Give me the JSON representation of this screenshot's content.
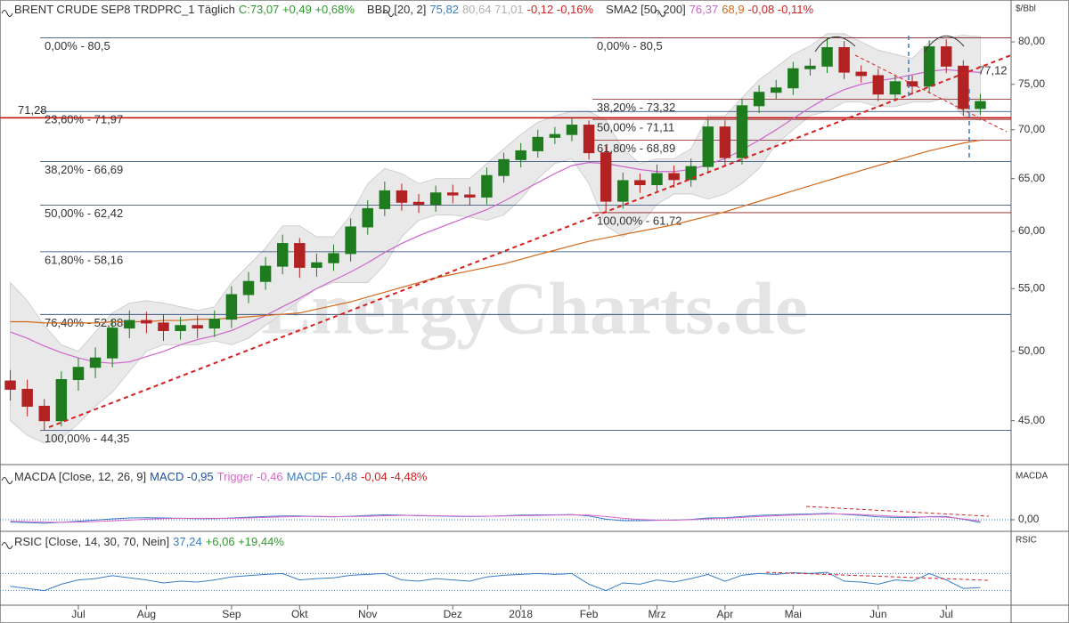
{
  "chart_data": [
    {
      "type": "candlestick",
      "header": [
        {
          "text": "BRENT CRUDE SEP8 TRDPRC_1 Täglich",
          "color": "#333333"
        },
        {
          "text": "C:73,07 +0,49 +0,68%",
          "color": "#2e9a2e"
        },
        {
          "text": "BBD [20, 2]",
          "color": "#333333"
        },
        {
          "text": "75,82",
          "color": "#3a7cc4"
        },
        {
          "text": "80,64 71,01",
          "color": "#b0b0b0"
        },
        {
          "text": "-0,12 -0,16%",
          "color": "#cc2222"
        },
        {
          "text": "SMA2 [50, 200]",
          "color": "#333333"
        },
        {
          "text": "76,37",
          "color": "#cc66cc"
        },
        {
          "text": "68,9",
          "color": "#d2691e"
        },
        {
          "text": "-0,08 -0,11%",
          "color": "#cc2222"
        }
      ],
      "unit": "$/Bbl",
      "watermark": "EnergyCharts.de",
      "log": true,
      "ylim": [
        42.1,
        83.2
      ],
      "yticks": [
        {
          "value": 45,
          "label": "45,00"
        },
        {
          "value": 50,
          "label": "50,00"
        },
        {
          "value": 55,
          "label": "55,00"
        },
        {
          "value": 60,
          "label": "60,00"
        },
        {
          "value": 65,
          "label": "65,00"
        },
        {
          "value": 70,
          "label": "70,00"
        },
        {
          "value": 75,
          "label": "75,00"
        },
        {
          "value": 80,
          "label": "80,00"
        }
      ],
      "categories": [
        null,
        null,
        null,
        null,
        "Jul",
        null,
        null,
        null,
        "Aug",
        null,
        null,
        null,
        null,
        "Sep",
        null,
        null,
        null,
        "Okt",
        null,
        null,
        null,
        "Nov",
        null,
        null,
        null,
        null,
        "Dez",
        null,
        null,
        null,
        "2018",
        null,
        null,
        null,
        "Feb",
        null,
        null,
        null,
        "Mrz",
        null,
        null,
        null,
        "Apr",
        null,
        null,
        null,
        "Mai",
        null,
        null,
        null,
        null,
        "Jun",
        null,
        null,
        null,
        "Jul",
        null,
        null
      ],
      "open": [
        47.8,
        47.2,
        46.0,
        45.0,
        47.9,
        48.8,
        49.5,
        51.8,
        52.4,
        52.2,
        51.6,
        52.0,
        51.8,
        52.5,
        54.5,
        55.6,
        56.9,
        58.9,
        56.8,
        57.2,
        58.0,
        60.4,
        62.1,
        63.8,
        62.7,
        62.5,
        63.6,
        63.4,
        63.2,
        65.3,
        66.9,
        67.8,
        69.2,
        69.5,
        70.5,
        67.6,
        62.8,
        64.8,
        64.4,
        65.5,
        64.9,
        66.2,
        70.3,
        67.1,
        72.6,
        74.1,
        74.6,
        76.8,
        77.1,
        79.3,
        76.4,
        76.0,
        73.9,
        75.3,
        74.8,
        79.4,
        77.1,
        72.3
      ],
      "high": [
        48.6,
        47.9,
        46.5,
        48.5,
        49.5,
        50.3,
        52.5,
        53.2,
        53.1,
        52.9,
        52.7,
        52.8,
        53.2,
        55.2,
        56.4,
        57.7,
        59.7,
        59.4,
        58.0,
        58.8,
        61.2,
        62.9,
        64.7,
        64.5,
        63.5,
        64.3,
        64.4,
        64.2,
        66.1,
        67.6,
        68.6,
        70.0,
        70.3,
        71.3,
        71.0,
        68.3,
        65.6,
        65.5,
        66.4,
        66.3,
        67.0,
        71.1,
        71.0,
        73.4,
        74.9,
        75.5,
        77.6,
        78.0,
        80.5,
        80.1,
        77.2,
        76.8,
        76.1,
        76.0,
        80.2,
        80.3,
        77.8,
        73.9
      ],
      "low": [
        46.4,
        45.3,
        44.35,
        44.6,
        47.1,
        48.0,
        48.8,
        51.0,
        51.4,
        50.8,
        50.9,
        51.0,
        51.1,
        51.8,
        53.8,
        54.9,
        56.2,
        55.9,
        56.0,
        56.5,
        57.3,
        59.7,
        61.4,
        61.9,
        61.7,
        61.8,
        62.6,
        62.4,
        62.5,
        64.6,
        66.1,
        67.1,
        68.5,
        68.8,
        66.9,
        61.72,
        62.1,
        63.6,
        63.7,
        64.1,
        64.2,
        65.5,
        66.3,
        66.4,
        71.8,
        73.3,
        73.8,
        76.0,
        76.3,
        75.6,
        75.2,
        73.1,
        73.1,
        74.0,
        74.0,
        76.3,
        71.5,
        71.6
      ],
      "close": [
        47.2,
        46.0,
        45.0,
        47.9,
        48.8,
        49.5,
        51.8,
        52.4,
        52.2,
        51.6,
        52.0,
        51.8,
        52.5,
        54.5,
        55.6,
        56.9,
        58.9,
        56.8,
        57.2,
        58.0,
        60.4,
        62.1,
        63.8,
        62.7,
        62.5,
        63.6,
        63.4,
        63.2,
        65.3,
        66.9,
        67.8,
        69.2,
        69.5,
        70.5,
        67.6,
        62.8,
        64.8,
        64.4,
        65.5,
        64.9,
        66.2,
        70.3,
        67.1,
        72.6,
        74.1,
        74.6,
        76.8,
        77.1,
        79.3,
        76.4,
        76.0,
        73.9,
        75.3,
        74.8,
        79.4,
        77.1,
        72.3,
        73.07
      ],
      "up_color": "#1e7b1e",
      "down_color": "#b22222",
      "bands": {
        "color": "#e9e9e9",
        "upper": [
          55.5,
          54.0,
          52.0,
          50.5,
          50.0,
          51.5,
          53.0,
          53.8,
          54.0,
          53.8,
          53.5,
          53.2,
          53.5,
          55.5,
          57.0,
          58.5,
          60.5,
          60.5,
          59.5,
          59.5,
          61.5,
          64.5,
          66.0,
          65.5,
          64.5,
          65.0,
          65.0,
          65.0,
          66.5,
          68.0,
          69.5,
          70.8,
          71.5,
          72.0,
          72.0,
          71.0,
          68.0,
          66.5,
          67.0,
          67.0,
          68.0,
          71.5,
          71.5,
          73.5,
          75.5,
          77.0,
          78.5,
          79.5,
          81.0,
          81.0,
          80.0,
          79.0,
          78.5,
          78.0,
          80.0,
          80.5,
          80.8,
          80.64
        ],
        "lower": [
          45.0,
          44.0,
          43.5,
          43.8,
          44.8,
          46.0,
          47.0,
          48.5,
          50.0,
          50.5,
          50.5,
          50.5,
          50.8,
          50.5,
          51.0,
          52.0,
          53.0,
          54.0,
          55.0,
          55.5,
          55.5,
          55.5,
          57.0,
          59.5,
          61.0,
          61.5,
          61.5,
          61.3,
          61.0,
          61.5,
          63.0,
          65.0,
          66.5,
          67.0,
          64.5,
          60.5,
          59.5,
          60.5,
          62.5,
          63.5,
          63.5,
          63.0,
          63.5,
          64.5,
          66.0,
          68.5,
          70.0,
          71.5,
          72.0,
          73.0,
          73.0,
          72.5,
          72.5,
          73.0,
          73.0,
          73.5,
          71.5,
          71.01
        ]
      },
      "overlays": [
        {
          "color": "#cc66cc",
          "values": [
            51.5,
            51.0,
            50.4,
            49.9,
            49.5,
            49.2,
            49.1,
            49.2,
            49.6,
            50.0,
            50.5,
            50.9,
            51.2,
            51.6,
            52.2,
            52.8,
            53.5,
            54.2,
            55.0,
            55.7,
            56.4,
            57.2,
            58.1,
            58.9,
            59.6,
            60.2,
            60.8,
            61.4,
            62.0,
            62.8,
            63.7,
            64.6,
            65.5,
            66.3,
            66.6,
            66.5,
            66.2,
            65.9,
            65.7,
            65.7,
            65.9,
            66.4,
            67.0,
            67.9,
            68.9,
            70.0,
            71.2,
            72.4,
            73.5,
            74.4,
            75.0,
            75.4,
            75.7,
            76.1,
            76.5,
            76.7,
            76.5,
            76.37
          ]
        },
        {
          "color": "#d2691e",
          "values": [
            52.3,
            52.3,
            52.2,
            52.2,
            52.2,
            52.2,
            52.3,
            52.3,
            52.3,
            52.4,
            52.4,
            52.5,
            52.5,
            52.6,
            52.7,
            52.8,
            52.9,
            53.0,
            53.3,
            53.6,
            53.9,
            54.3,
            54.7,
            55.1,
            55.5,
            55.9,
            56.2,
            56.5,
            56.8,
            57.1,
            57.5,
            57.9,
            58.3,
            58.7,
            59.1,
            59.4,
            59.7,
            60.0,
            60.3,
            60.6,
            61.0,
            61.4,
            61.8,
            62.3,
            62.8,
            63.3,
            63.8,
            64.3,
            64.8,
            65.3,
            65.8,
            66.3,
            66.8,
            67.3,
            67.8,
            68.2,
            68.6,
            68.9
          ]
        }
      ],
      "fib_levels": [
        {
          "label": "0,00% - 80,5",
          "value": 80.5,
          "side": "left",
          "color": "#3f6cc4"
        },
        {
          "label": "23,60% - 71,97",
          "value": 71.97,
          "side": "left",
          "color": "#3f6cc4"
        },
        {
          "label": "38,20% - 66,69",
          "value": 66.69,
          "side": "left",
          "color": "#3f6cc4"
        },
        {
          "label": "50,00% - 62,42",
          "value": 62.42,
          "side": "left",
          "color": "#3f6cc4"
        },
        {
          "label": "61,80% - 58,16",
          "value": 58.16,
          "side": "left",
          "color": "#3f6cc4"
        },
        {
          "label": "76,40% - 52,88",
          "value": 52.88,
          "side": "left",
          "color": "#3f6cc4"
        },
        {
          "label": "100,00% - 44,35",
          "value": 44.35,
          "side": "left",
          "color": "#3f6cc4"
        },
        {
          "label": "0,00% - 80,5",
          "value": 80.5,
          "side": "right",
          "color": "#8b1a1a"
        },
        {
          "label": "38,20% - 73,32",
          "value": 73.32,
          "side": "right",
          "color": "#8b1a1a"
        },
        {
          "label": "50,00% - 71,11",
          "value": 71.11,
          "side": "right",
          "color": "#8b1a1a"
        },
        {
          "label": "61,80% - 68,89",
          "value": 68.89,
          "side": "right",
          "color": "#8b1a1a"
        },
        {
          "label": "100,00% - 61,72",
          "value": 61.72,
          "side": "right",
          "color": "#8b1a1a"
        }
      ],
      "marker_levels": [
        {
          "label": "71,28",
          "value": 71.28,
          "color": "#c00000"
        }
      ],
      "annotations": [
        {
          "text": "77,12",
          "value": 77.12,
          "color": "#c00000"
        }
      ]
    },
    {
      "type": "macd",
      "label": "MACDA",
      "header": [
        {
          "text": "MACDA [Close, 12, 26, 9]",
          "color": "#333333"
        },
        {
          "text": "MACD -0,95",
          "color": "#1f4f9f"
        },
        {
          "text": "Trigger -0,46",
          "color": "#dd66cc"
        },
        {
          "text": "MACDF -0,48",
          "color": "#3a7cc4"
        },
        {
          "text": "-0,04 -4,48%",
          "color": "#cc2222"
        }
      ],
      "ylim": [
        -4,
        12
      ],
      "yticks": [
        {
          "value": 0,
          "label": "0,00"
        }
      ],
      "series": [
        {
          "color": "#3a7cc4",
          "values": [
            -0.8,
            -1.0,
            -1.2,
            -0.9,
            -0.5,
            -0.1,
            0.3,
            0.6,
            0.7,
            0.6,
            0.5,
            0.4,
            0.4,
            0.6,
            0.9,
            1.1,
            1.3,
            1.3,
            1.1,
            1.0,
            1.2,
            1.5,
            1.7,
            1.6,
            1.4,
            1.3,
            1.2,
            1.1,
            1.2,
            1.4,
            1.6,
            1.7,
            1.7,
            1.8,
            1.3,
            0.2,
            -0.3,
            -0.3,
            -0.2,
            -0.1,
            0.1,
            0.6,
            0.7,
            1.1,
            1.5,
            1.7,
            1.9,
            2.0,
            2.2,
            1.9,
            1.5,
            1.0,
            0.8,
            0.7,
            1.1,
            1.1,
            0.2,
            -0.95
          ]
        },
        {
          "color": "#dd66cc",
          "values": [
            -0.5,
            -0.6,
            -0.8,
            -0.9,
            -0.8,
            -0.6,
            -0.4,
            -0.1,
            0.2,
            0.4,
            0.5,
            0.5,
            0.5,
            0.5,
            0.6,
            0.8,
            1.0,
            1.1,
            1.2,
            1.1,
            1.1,
            1.2,
            1.4,
            1.5,
            1.5,
            1.4,
            1.3,
            1.2,
            1.2,
            1.3,
            1.4,
            1.5,
            1.6,
            1.7,
            1.6,
            1.1,
            0.5,
            0.1,
            -0.1,
            -0.1,
            0.0,
            0.3,
            0.5,
            0.8,
            1.1,
            1.4,
            1.6,
            1.8,
            2.0,
            2.0,
            1.8,
            1.5,
            1.2,
            1.0,
            1.0,
            0.9,
            0.3,
            -0.46
          ]
        }
      ]
    },
    {
      "type": "rsi",
      "label": "RSIC",
      "header": [
        {
          "text": "RSIC [Close, 14, 30, 70, Nein]",
          "color": "#333333"
        },
        {
          "text": "37,24",
          "color": "#3a7cc4"
        },
        {
          "text": "+6,06 +19,44%",
          "color": "#2e9a2e"
        }
      ],
      "ylim": [
        0,
        100
      ],
      "levels": [
        30,
        70
      ],
      "series": [
        {
          "color": "#3a7cc4",
          "values": [
            40,
            35,
            30,
            45,
            55,
            58,
            65,
            60,
            55,
            48,
            52,
            50,
            55,
            62,
            65,
            68,
            70,
            55,
            58,
            60,
            66,
            68,
            70,
            55,
            52,
            58,
            55,
            52,
            62,
            66,
            68,
            70,
            68,
            70,
            45,
            30,
            48,
            45,
            55,
            50,
            58,
            68,
            52,
            66,
            70,
            68,
            72,
            70,
            73,
            52,
            50,
            45,
            55,
            52,
            70,
            55,
            35,
            37.24
          ]
        }
      ]
    }
  ]
}
